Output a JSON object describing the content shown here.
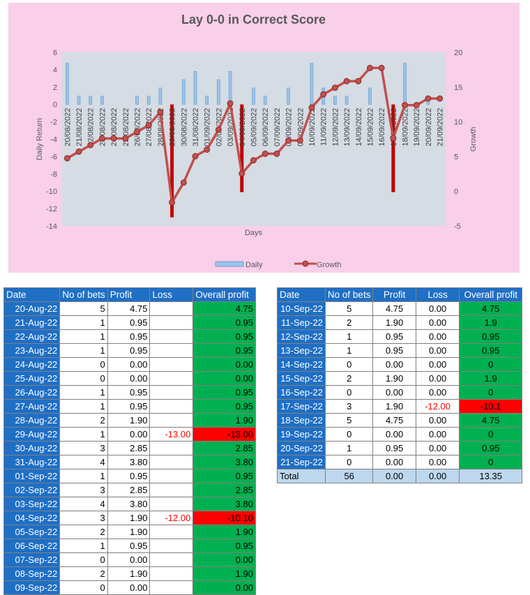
{
  "chart_data": {
    "type": "bar",
    "title": "Lay 0-0 in Correct Score",
    "xlabel": "Days",
    "ylabel": "Daily Return",
    "y2label": "Growth",
    "ylim": [
      -14,
      6
    ],
    "y2lim": [
      -5,
      20
    ],
    "yticks": [
      "6",
      "4",
      "2",
      "0",
      "-2",
      "-4",
      "-6",
      "-8",
      "-10",
      "-12",
      "-14"
    ],
    "y2ticks": [
      "20",
      "15",
      "10",
      "5",
      "0",
      "-5"
    ],
    "categories": [
      "20/08/2022",
      "21/08/2022",
      "22/08/2022",
      "23/08/2022",
      "24/08/2022",
      "25/08/2022",
      "26/08/2022",
      "27/08/2022",
      "28/08/2022",
      "29/08/2022",
      "30/08/2022",
      "31/08/2022",
      "01/09/2022",
      "02/09/2022",
      "03/09/2022",
      "04/09/2022",
      "05/09/2022",
      "06/09/2022",
      "07/09/2022",
      "08/09/2022",
      "09/09/2022",
      "10/09/2022",
      "11/09/2022",
      "12/09/2022",
      "13/09/2022",
      "14/09/2022",
      "15/09/2022",
      "16/09/2022",
      "17/09/2022",
      "18/09/2022",
      "19/09/2022",
      "20/09/2022",
      "21/09/2022"
    ],
    "legend": "bottom",
    "series": [
      {
        "name": "Daily",
        "axis": "left",
        "type": "bar",
        "color": "#9dc3e6",
        "values": [
          4.75,
          0.95,
          0.95,
          0.95,
          0,
          0,
          0.95,
          0.95,
          1.9,
          -13,
          2.85,
          3.8,
          0.95,
          2.85,
          3.8,
          -10.1,
          1.9,
          0.95,
          0,
          1.9,
          0,
          4.75,
          1.9,
          0.95,
          0.95,
          0,
          1.9,
          0,
          -10.1,
          4.75,
          0,
          0.95,
          0
        ]
      },
      {
        "name": "Growth",
        "axis": "right",
        "type": "line",
        "color": "#c0504d",
        "values": [
          4.75,
          5.7,
          6.65,
          7.6,
          7.6,
          7.6,
          8.55,
          9.5,
          11.4,
          -1.6,
          1.25,
          5.05,
          6,
          8.85,
          12.65,
          2.55,
          4.45,
          5.4,
          5.4,
          7.3,
          7.3,
          12.05,
          13.95,
          14.9,
          15.85,
          15.85,
          17.75,
          17.75,
          7.65,
          12.4,
          12.4,
          13.35,
          13.35
        ]
      }
    ]
  },
  "tables": {
    "headers": [
      "Date",
      "No of bets",
      "Profit",
      "Loss",
      "Overall profit"
    ],
    "left_rows": [
      {
        "date": "20-Aug-22",
        "bets": "5",
        "profit": "4.75",
        "loss": "",
        "overall": "4.75",
        "neg": false
      },
      {
        "date": "21-Aug-22",
        "bets": "1",
        "profit": "0.95",
        "loss": "",
        "overall": "0.95",
        "neg": false
      },
      {
        "date": "22-Aug-22",
        "bets": "1",
        "profit": "0.95",
        "loss": "",
        "overall": "0.95",
        "neg": false
      },
      {
        "date": "23-Aug-22",
        "bets": "1",
        "profit": "0.95",
        "loss": "",
        "overall": "0.95",
        "neg": false
      },
      {
        "date": "24-Aug-22",
        "bets": "0",
        "profit": "0.00",
        "loss": "",
        "overall": "0.00",
        "neg": false
      },
      {
        "date": "25-Aug-22",
        "bets": "0",
        "profit": "0.00",
        "loss": "",
        "overall": "0.00",
        "neg": false
      },
      {
        "date": "26-Aug-22",
        "bets": "1",
        "profit": "0.95",
        "loss": "",
        "overall": "0.95",
        "neg": false
      },
      {
        "date": "27-Aug-22",
        "bets": "1",
        "profit": "0.95",
        "loss": "",
        "overall": "0.95",
        "neg": false
      },
      {
        "date": "28-Aug-22",
        "bets": "2",
        "profit": "1.90",
        "loss": "",
        "overall": "1.90",
        "neg": false
      },
      {
        "date": "29-Aug-22",
        "bets": "1",
        "profit": "0.00",
        "loss": "-13.00",
        "overall": "-13.00",
        "neg": true
      },
      {
        "date": "30-Aug-22",
        "bets": "3",
        "profit": "2.85",
        "loss": "",
        "overall": "2.85",
        "neg": false
      },
      {
        "date": "31-Aug-22",
        "bets": "4",
        "profit": "3.80",
        "loss": "",
        "overall": "3.80",
        "neg": false
      },
      {
        "date": "01-Sep-22",
        "bets": "1",
        "profit": "0.95",
        "loss": "",
        "overall": "0.95",
        "neg": false
      },
      {
        "date": "02-Sep-22",
        "bets": "3",
        "profit": "2.85",
        "loss": "",
        "overall": "2.85",
        "neg": false
      },
      {
        "date": "03-Sep-22",
        "bets": "4",
        "profit": "3.80",
        "loss": "",
        "overall": "3.80",
        "neg": false
      },
      {
        "date": "04-Sep-22",
        "bets": "3",
        "profit": "1.90",
        "loss": "-12.00",
        "overall": "-10.10",
        "neg": true
      },
      {
        "date": "05-Sep-22",
        "bets": "2",
        "profit": "1.90",
        "loss": "",
        "overall": "1.90",
        "neg": false
      },
      {
        "date": "06-Sep-22",
        "bets": "1",
        "profit": "0.95",
        "loss": "",
        "overall": "0.95",
        "neg": false
      },
      {
        "date": "07-Sep-22",
        "bets": "0",
        "profit": "0.00",
        "loss": "",
        "overall": "0.00",
        "neg": false
      },
      {
        "date": "08-Sep-22",
        "bets": "2",
        "profit": "1.90",
        "loss": "",
        "overall": "1.90",
        "neg": false
      },
      {
        "date": "09-Sep-22",
        "bets": "0",
        "profit": "0.00",
        "loss": "",
        "overall": "0.00",
        "neg": false
      }
    ],
    "right_rows": [
      {
        "date": "10-Sep-22",
        "bets": "5",
        "profit": "4.75",
        "loss": "0.00",
        "overall": "4.75",
        "neg": false
      },
      {
        "date": "11-Sep-22",
        "bets": "2",
        "profit": "1.90",
        "loss": "0.00",
        "overall": "1.9",
        "neg": false
      },
      {
        "date": "12-Sep-22",
        "bets": "1",
        "profit": "0.95",
        "loss": "0.00",
        "overall": "0.95",
        "neg": false
      },
      {
        "date": "13-Sep-22",
        "bets": "1",
        "profit": "0.95",
        "loss": "0.00",
        "overall": "0.95",
        "neg": false
      },
      {
        "date": "14-Sep-22",
        "bets": "0",
        "profit": "0.00",
        "loss": "0.00",
        "overall": "0",
        "neg": false
      },
      {
        "date": "15-Sep-22",
        "bets": "2",
        "profit": "1.90",
        "loss": "0.00",
        "overall": "1.9",
        "neg": false
      },
      {
        "date": "16-Sep-22",
        "bets": "0",
        "profit": "0.00",
        "loss": "0.00",
        "overall": "0",
        "neg": false
      },
      {
        "date": "17-Sep-22",
        "bets": "3",
        "profit": "1.90",
        "loss": "-12.00",
        "overall": "-10.1",
        "neg": true
      },
      {
        "date": "18-Sep-22",
        "bets": "5",
        "profit": "4.75",
        "loss": "0.00",
        "overall": "4.75",
        "neg": false
      },
      {
        "date": "19-Sep-22",
        "bets": "0",
        "profit": "0.00",
        "loss": "0.00",
        "overall": "0",
        "neg": false
      },
      {
        "date": "20-Sep-22",
        "bets": "1",
        "profit": "0.95",
        "loss": "0.00",
        "overall": "0.95",
        "neg": false
      },
      {
        "date": "21-Sep-22",
        "bets": "0",
        "profit": "0.00",
        "loss": "0.00",
        "overall": "0",
        "neg": false
      }
    ],
    "total": {
      "label": "Total",
      "bets": "56",
      "profit": "0.00",
      "loss": "0.00",
      "overall": "13.35"
    }
  }
}
